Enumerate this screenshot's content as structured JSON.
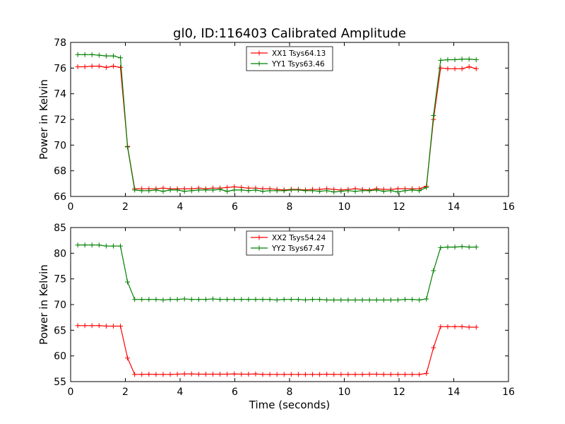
{
  "title": "gl0, ID:116403 Calibrated Amplitude",
  "chart_data": [
    {
      "type": "line",
      "title": "gl0, ID:116403 Calibrated Amplitude",
      "xlabel": "",
      "ylabel": "Power in Kelvin",
      "xlim": [
        0,
        16
      ],
      "ylim": [
        66,
        78
      ],
      "xticks": [
        0,
        2,
        4,
        6,
        8,
        10,
        12,
        14,
        16
      ],
      "yticks": [
        66,
        68,
        70,
        72,
        74,
        76,
        78
      ],
      "grid": false,
      "legend_position": "top-center",
      "x": [
        0.26,
        0.52,
        0.78,
        1.04,
        1.3,
        1.56,
        1.82,
        2.08,
        2.34,
        2.6,
        2.86,
        3.12,
        3.38,
        3.64,
        3.9,
        4.16,
        4.42,
        4.68,
        4.94,
        5.2,
        5.46,
        5.72,
        5.98,
        6.24,
        6.5,
        6.76,
        7.02,
        7.28,
        7.54,
        7.8,
        8.06,
        8.32,
        8.58,
        8.84,
        9.1,
        9.36,
        9.62,
        9.88,
        10.14,
        10.4,
        10.66,
        10.92,
        11.18,
        11.44,
        11.7,
        11.96,
        12.22,
        12.48,
        12.74,
        13.0,
        13.26,
        13.52,
        13.78,
        14.04,
        14.3,
        14.56,
        14.82
      ],
      "series": [
        {
          "name": "XX1 Tsys64.13",
          "color": "#ff0000",
          "values": [
            76.1,
            76.1,
            76.15,
            76.15,
            76.05,
            76.15,
            76.05,
            69.9,
            66.6,
            66.6,
            66.6,
            66.6,
            66.65,
            66.6,
            66.6,
            66.6,
            66.6,
            66.65,
            66.6,
            66.65,
            66.65,
            66.7,
            66.75,
            66.7,
            66.65,
            66.65,
            66.6,
            66.6,
            66.55,
            66.5,
            66.55,
            66.55,
            66.5,
            66.55,
            66.55,
            66.6,
            66.55,
            66.5,
            66.55,
            66.6,
            66.55,
            66.5,
            66.6,
            66.55,
            66.55,
            66.6,
            66.6,
            66.6,
            66.6,
            66.8,
            72.0,
            76.0,
            75.95,
            75.95,
            75.95,
            76.1,
            75.95
          ]
        },
        {
          "name": "YY1 Tsys63.46",
          "color": "#008000",
          "values": [
            77.05,
            77.05,
            77.05,
            77.0,
            76.95,
            76.95,
            76.8,
            69.85,
            66.5,
            66.45,
            66.45,
            66.5,
            66.4,
            66.5,
            66.5,
            66.4,
            66.45,
            66.5,
            66.5,
            66.5,
            66.55,
            66.4,
            66.5,
            66.5,
            66.45,
            66.5,
            66.4,
            66.45,
            66.45,
            66.45,
            66.5,
            66.5,
            66.45,
            66.45,
            66.4,
            66.45,
            66.35,
            66.4,
            66.45,
            66.4,
            66.45,
            66.45,
            66.5,
            66.4,
            66.45,
            66.35,
            66.45,
            66.5,
            66.45,
            66.7,
            72.3,
            76.6,
            76.65,
            76.65,
            76.7,
            76.7,
            76.65
          ]
        }
      ]
    },
    {
      "type": "line",
      "title": "",
      "xlabel": "Time (seconds)",
      "ylabel": "Power in Kelvin",
      "xlim": [
        0,
        16
      ],
      "ylim": [
        55,
        85
      ],
      "xticks": [
        0,
        2,
        4,
        6,
        8,
        10,
        12,
        14,
        16
      ],
      "yticks": [
        55,
        60,
        65,
        70,
        75,
        80,
        85
      ],
      "grid": false,
      "legend_position": "top-center",
      "x": [
        0.26,
        0.52,
        0.78,
        1.04,
        1.3,
        1.56,
        1.82,
        2.08,
        2.34,
        2.6,
        2.86,
        3.12,
        3.38,
        3.64,
        3.9,
        4.16,
        4.42,
        4.68,
        4.94,
        5.2,
        5.46,
        5.72,
        5.98,
        6.24,
        6.5,
        6.76,
        7.02,
        7.28,
        7.54,
        7.8,
        8.06,
        8.32,
        8.58,
        8.84,
        9.1,
        9.36,
        9.62,
        9.88,
        10.14,
        10.4,
        10.66,
        10.92,
        11.18,
        11.44,
        11.7,
        11.96,
        12.22,
        12.48,
        12.74,
        13.0,
        13.26,
        13.52,
        13.78,
        14.04,
        14.3,
        14.56,
        14.82
      ],
      "series": [
        {
          "name": "XX2 Tsys54.24",
          "color": "#ff0000",
          "values": [
            65.9,
            65.9,
            65.9,
            65.9,
            65.8,
            65.8,
            65.8,
            59.6,
            56.4,
            56.4,
            56.45,
            56.4,
            56.4,
            56.4,
            56.45,
            56.5,
            56.5,
            56.45,
            56.45,
            56.45,
            56.45,
            56.45,
            56.5,
            56.45,
            56.45,
            56.5,
            56.4,
            56.4,
            56.4,
            56.4,
            56.4,
            56.4,
            56.4,
            56.4,
            56.4,
            56.45,
            56.4,
            56.4,
            56.4,
            56.4,
            56.4,
            56.45,
            56.45,
            56.4,
            56.4,
            56.4,
            56.4,
            56.4,
            56.4,
            56.6,
            61.6,
            65.7,
            65.7,
            65.7,
            65.7,
            65.6,
            65.6
          ]
        },
        {
          "name": "YY2 Tsys67.47",
          "color": "#008000",
          "values": [
            81.6,
            81.6,
            81.6,
            81.6,
            81.4,
            81.4,
            81.4,
            74.4,
            71.0,
            71.0,
            71.0,
            71.0,
            70.9,
            71.0,
            71.0,
            71.1,
            71.0,
            71.0,
            71.0,
            71.1,
            71.0,
            71.0,
            71.0,
            71.0,
            71.0,
            71.0,
            71.0,
            71.0,
            70.9,
            71.0,
            71.0,
            71.0,
            70.9,
            71.0,
            71.0,
            70.9,
            70.9,
            70.9,
            70.9,
            70.9,
            70.9,
            70.9,
            70.9,
            70.9,
            70.9,
            70.9,
            71.0,
            71.0,
            70.9,
            71.1,
            76.6,
            81.1,
            81.2,
            81.2,
            81.3,
            81.2,
            81.2
          ]
        }
      ]
    }
  ]
}
